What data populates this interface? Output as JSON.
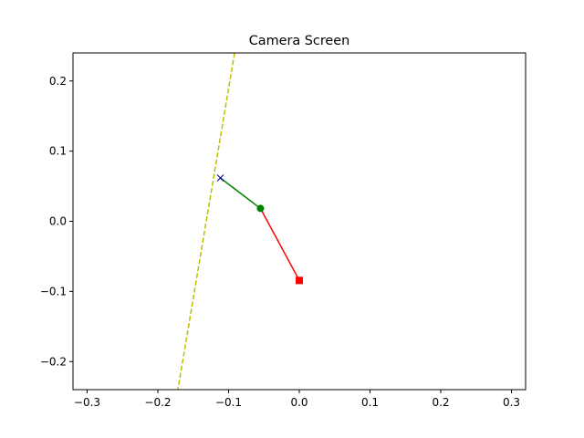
{
  "chart_data": {
    "type": "line",
    "title": "Camera Screen",
    "xlabel": "",
    "ylabel": "",
    "xlim": [
      -0.32,
      0.32
    ],
    "ylim": [
      -0.24,
      0.24
    ],
    "xticks": [
      -0.3,
      -0.2,
      -0.1,
      0.0,
      0.1,
      0.2,
      0.3
    ],
    "xtick_labels": [
      "−0.3",
      "−0.2",
      "−0.1",
      "0.0",
      "0.1",
      "0.2",
      "0.3"
    ],
    "yticks": [
      -0.2,
      -0.1,
      0.0,
      0.1,
      0.2
    ],
    "ytick_labels": [
      "−0.2",
      "−0.1",
      "0.0",
      "0.1",
      "0.2"
    ],
    "grid": false,
    "series": [
      {
        "style": "dashed-line",
        "color": "#bfbf00",
        "x": [
          -0.0915,
          -0.1717
        ],
        "y": [
          0.24,
          -0.24
        ]
      },
      {
        "style": "solid-line",
        "color": "#008000",
        "x": [
          -0.1116,
          -0.0549
        ],
        "y": [
          0.0618,
          0.0183
        ]
      },
      {
        "style": "solid-line",
        "color": "#ff0000",
        "x": [
          -0.0549,
          0.0
        ],
        "y": [
          0.0183,
          -0.0843
        ]
      },
      {
        "style": "x-marker",
        "color": "#00008b",
        "x": [
          -0.1116
        ],
        "y": [
          0.0618
        ]
      },
      {
        "style": "circle-marker",
        "color": "#008000",
        "x": [
          -0.0549
        ],
        "y": [
          0.0183
        ]
      },
      {
        "style": "square-marker",
        "color": "#ff0000",
        "x": [
          0.0
        ],
        "y": [
          -0.0843
        ]
      }
    ]
  }
}
